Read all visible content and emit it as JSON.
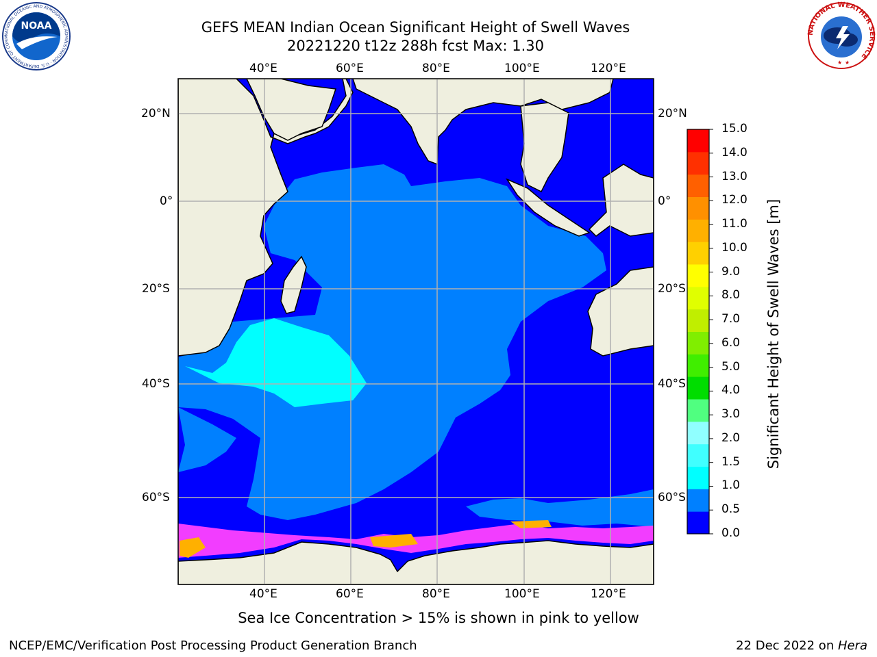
{
  "header": {
    "title_line1": "GEFS MEAN Indian Ocean Significant Height of Swell Waves",
    "title_line2": "20221220 t12z 288h fcst   Max: 1.30"
  },
  "logos": {
    "noaa_text": "NOAA",
    "noaa_ring_text": "NATIONAL OCEANIC AND ATMOSPHERIC ADMINISTRATION · U.S. DEPARTMENT OF COMMERCE",
    "nws_ring_text": "NATIONAL WEATHER SERVICE"
  },
  "map": {
    "lon_ticks": [
      "40°E",
      "60°E",
      "80°E",
      "100°E",
      "120°E"
    ],
    "lat_ticks_left": [
      "20°N",
      "0°",
      "20°S",
      "40°S",
      "60°S"
    ],
    "lat_ticks_right": [
      "20°N",
      "0°",
      "20°S",
      "40°S",
      "60°S"
    ],
    "colors": {
      "land": "#efefdf",
      "swell_0_05": "#0000ff",
      "swell_05_10": "#0080ff",
      "swell_10_15": "#00ffff",
      "sea_ice_low": "#ff40ff",
      "sea_ice_high": "#ffb000",
      "grid": "#b0b0b0",
      "coast": "#000000"
    }
  },
  "colorbar": {
    "label": "Significant Height of Swell Waves [m]",
    "ticks": [
      "0.0",
      "0.5",
      "1.0",
      "1.5",
      "2.0",
      "3.0",
      "4.0",
      "5.0",
      "6.0",
      "7.0",
      "8.0",
      "9.0",
      "10.0",
      "11.0",
      "12.0",
      "13.0",
      "14.0",
      "15.0"
    ],
    "colors": [
      "#0000ff",
      "#0080ff",
      "#00ffff",
      "#40ffff",
      "#90ffff",
      "#50ff80",
      "#00dd00",
      "#40ee00",
      "#80ee00",
      "#c0ee00",
      "#e0ff00",
      "#ffff00",
      "#ffd000",
      "#ffb000",
      "#ff9000",
      "#ff6000",
      "#ff3000",
      "#ff0000"
    ]
  },
  "caption": "Sea Ice Concentration > 15% is shown in pink to yellow",
  "footer": {
    "left": "NCEP/EMC/Verification Post Processing Product Generation Branch",
    "right_date": "22 Dec 2022 on ",
    "right_host": "Hera"
  }
}
